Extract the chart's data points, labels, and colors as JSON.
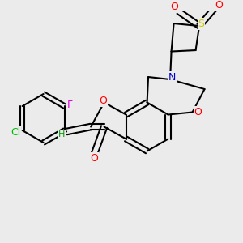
{
  "background_color": "#ebebeb",
  "bond_color": "#000000",
  "atom_colors": {
    "O": "#ff0000",
    "N": "#0000cc",
    "S": "#cccc00",
    "Cl": "#00bb00",
    "F": "#dd00dd",
    "H": "#009900",
    "C": "#000000"
  },
  "figsize": [
    3.0,
    3.0
  ],
  "dpi": 100
}
